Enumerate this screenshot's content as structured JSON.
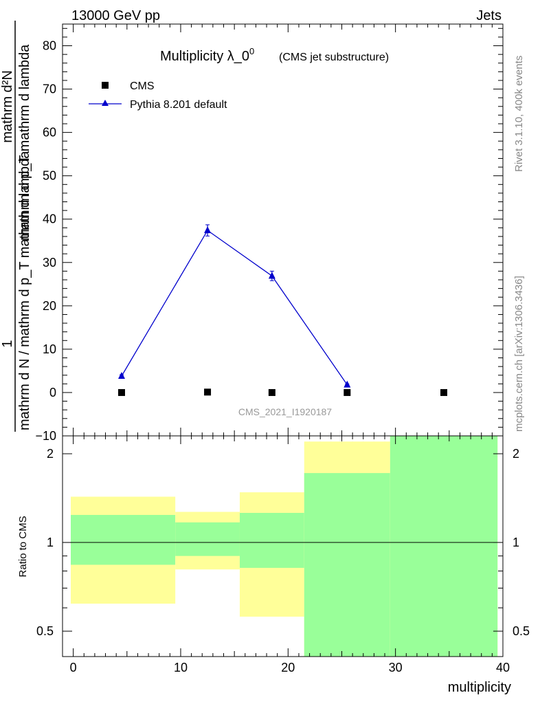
{
  "header": {
    "left": "13000 GeV pp",
    "right": "Jets"
  },
  "side": {
    "top": "Rivet 3.1.10,  400k events",
    "bottom": "mcplots.cern.ch [arXiv:1306.3436]"
  },
  "chart_data": {
    "type": "scatter",
    "title_main": "Multiplicity λ_0",
    "title_sup": "0",
    "title_paren": "(CMS jet substructure)",
    "watermark": "CMS_2021_I1920187",
    "xlabel": "multiplicity",
    "ylabel_num": "1",
    "ylabel_den": "mathrm d N / mathrm d p_T mathrm d lambda",
    "ylabel_upper_num": "mathrm d²N",
    "ylabel_upper_den": "mathrm d p_T mathrm d lambda",
    "xlim": [
      -1,
      40
    ],
    "xticks": [
      "0",
      "10",
      "20",
      "30",
      "40"
    ],
    "top_panel": {
      "ylim": [
        -10,
        85
      ],
      "yticks": [
        "−10",
        "0",
        "10",
        "20",
        "30",
        "40",
        "50",
        "60",
        "70",
        "80"
      ],
      "legend_placement": "top-left",
      "series": [
        {
          "name": "CMS",
          "marker": "square",
          "color": "#000000",
          "points": [
            {
              "x": 4.5,
              "y": 0.0
            },
            {
              "x": 12.5,
              "y": 0.1
            },
            {
              "x": 18.5,
              "y": 0.0
            },
            {
              "x": 25.5,
              "y": 0.0
            },
            {
              "x": 34.5,
              "y": 0.0
            }
          ]
        },
        {
          "name": "Pythia 8.201 default",
          "marker": "triangle",
          "color": "#0000cc",
          "points": [
            {
              "x": 4.5,
              "y": 3.8,
              "err": 0.3
            },
            {
              "x": 12.5,
              "y": 37.4,
              "err": 1.3
            },
            {
              "x": 18.5,
              "y": 26.9,
              "err": 1.1
            },
            {
              "x": 25.5,
              "y": 1.8,
              "err": 0.2
            }
          ]
        }
      ]
    },
    "ratio_panel": {
      "ylabel": "Ratio to CMS",
      "scale": "log",
      "ylim": [
        0.41,
        2.3
      ],
      "yticks": [
        "0.5",
        "1",
        "2"
      ],
      "reference_line": 1,
      "bands": [
        {
          "x": [
            -1,
            9.5
          ],
          "yellow": [
            0.62,
            1.43
          ],
          "green": [
            0.84,
            1.24
          ]
        },
        {
          "x": [
            9.5,
            15.5
          ],
          "yellow": [
            0.81,
            1.27
          ],
          "green": [
            0.9,
            1.17
          ]
        },
        {
          "x": [
            15.5,
            21.5
          ],
          "yellow": [
            0.56,
            1.48
          ],
          "green": [
            0.82,
            1.26
          ]
        },
        {
          "x": [
            21.5,
            29.5
          ],
          "yellow": [
            0.4,
            2.2
          ],
          "green": [
            0.4,
            1.72
          ]
        },
        {
          "x": [
            29.5,
            39.5
          ],
          "yellow": [
            0.4,
            2.35
          ],
          "green": [
            0.4,
            2.35
          ]
        }
      ],
      "band_colors": {
        "yellow": "#ffff99",
        "green": "#99ff99"
      }
    }
  }
}
